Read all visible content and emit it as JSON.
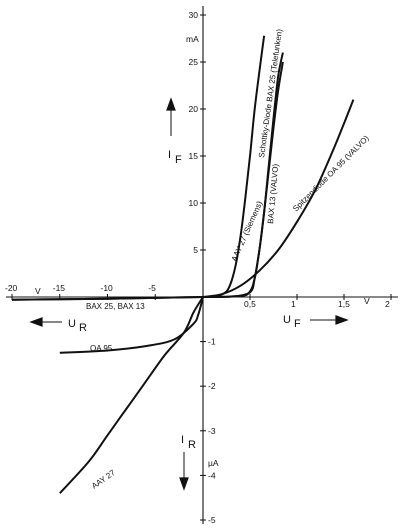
{
  "chart_data": {
    "type": "line",
    "title": "",
    "x_axis": {
      "forward_label": "U_F",
      "forward_unit": "V",
      "forward_ticks": [
        "0,5",
        "1",
        "1,5",
        "2"
      ],
      "forward_range": [
        0,
        2
      ],
      "reverse_label": "U_R",
      "reverse_unit": "V",
      "reverse_ticks": [
        "-5",
        "-10",
        "-15",
        "-20"
      ],
      "reverse_range": [
        -20,
        0
      ]
    },
    "y_axis": {
      "forward_label": "I_F",
      "forward_unit": "mA",
      "forward_ticks": [
        "5",
        "10",
        "15",
        "20",
        "25",
        "30"
      ],
      "forward_range": [
        0,
        30
      ],
      "reverse_label": "I_R",
      "reverse_unit": "µA",
      "reverse_ticks": [
        "-1",
        "-2",
        "-3",
        "-4",
        "-5"
      ],
      "reverse_range": [
        -5,
        0
      ]
    },
    "series": [
      {
        "name": "AAY 27 (Siemens)",
        "forward": [
          [
            0,
            0
          ],
          [
            0.15,
            0.1
          ],
          [
            0.25,
            0.6
          ],
          [
            0.3,
            1.6
          ],
          [
            0.35,
            3.5
          ],
          [
            0.4,
            6.5
          ],
          [
            0.45,
            10.5
          ],
          [
            0.5,
            15
          ],
          [
            0.55,
            20
          ],
          [
            0.6,
            24
          ],
          [
            0.65,
            27.8
          ]
        ],
        "reverse": [
          [
            0,
            0
          ],
          [
            -1,
            -0.35
          ],
          [
            -2,
            -0.8
          ],
          [
            -4,
            -1.3
          ],
          [
            -6,
            -1.9
          ],
          [
            -8,
            -2.5
          ],
          [
            -10,
            -3.1
          ],
          [
            -12,
            -3.7
          ],
          [
            -15,
            -4.4
          ]
        ]
      },
      {
        "name": "Schottky-Diode BAX 25 (Telefunken)",
        "forward": [
          [
            0,
            0
          ],
          [
            0.3,
            0.05
          ],
          [
            0.5,
            0.5
          ],
          [
            0.55,
            2
          ],
          [
            0.6,
            5
          ],
          [
            0.65,
            9
          ],
          [
            0.7,
            14
          ],
          [
            0.75,
            19
          ],
          [
            0.8,
            23.5
          ],
          [
            0.85,
            26
          ]
        ],
        "reverse": [
          [
            0,
            0
          ],
          [
            -5,
            -0.02
          ],
          [
            -10,
            -0.04
          ],
          [
            -15,
            -0.05
          ],
          [
            -20,
            -0.06
          ]
        ]
      },
      {
        "name": "BAX 13 (VALVO)",
        "forward": [
          [
            0,
            0
          ],
          [
            0.4,
            0.1
          ],
          [
            0.5,
            0.6
          ],
          [
            0.55,
            2
          ],
          [
            0.6,
            5
          ],
          [
            0.65,
            9
          ],
          [
            0.7,
            13.5
          ],
          [
            0.75,
            18
          ],
          [
            0.8,
            22
          ],
          [
            0.85,
            25
          ]
        ],
        "reverse": [
          [
            0,
            0
          ],
          [
            -5,
            -0.02
          ],
          [
            -10,
            -0.04
          ],
          [
            -15,
            -0.05
          ],
          [
            -20,
            -0.06
          ]
        ]
      },
      {
        "name": "Spitzendiode OA 95 (VALVO)",
        "forward": [
          [
            0,
            0
          ],
          [
            0.2,
            0.3
          ],
          [
            0.4,
            1.2
          ],
          [
            0.6,
            2.8
          ],
          [
            0.8,
            5
          ],
          [
            1.0,
            8
          ],
          [
            1.2,
            11.5
          ],
          [
            1.4,
            16
          ],
          [
            1.6,
            21
          ]
        ],
        "reverse": [
          [
            0,
            0
          ],
          [
            -0.5,
            -0.4
          ],
          [
            -1,
            -0.6
          ],
          [
            -3,
            -0.95
          ],
          [
            -6,
            -1.1
          ],
          [
            -10,
            -1.2
          ],
          [
            -15,
            -1.25
          ]
        ]
      }
    ],
    "reverse_curve_labels": [
      "BAX 25, BAX 13",
      "OA 95",
      "AAY 27"
    ]
  },
  "labels": {
    "axis_uf_main": "U",
    "axis_uf_sub": "F",
    "axis_ur_main": "U",
    "axis_ur_sub": "R",
    "axis_if_main": "I",
    "axis_if_sub": "F",
    "axis_ir_main": "I",
    "axis_ir_sub": "R"
  }
}
